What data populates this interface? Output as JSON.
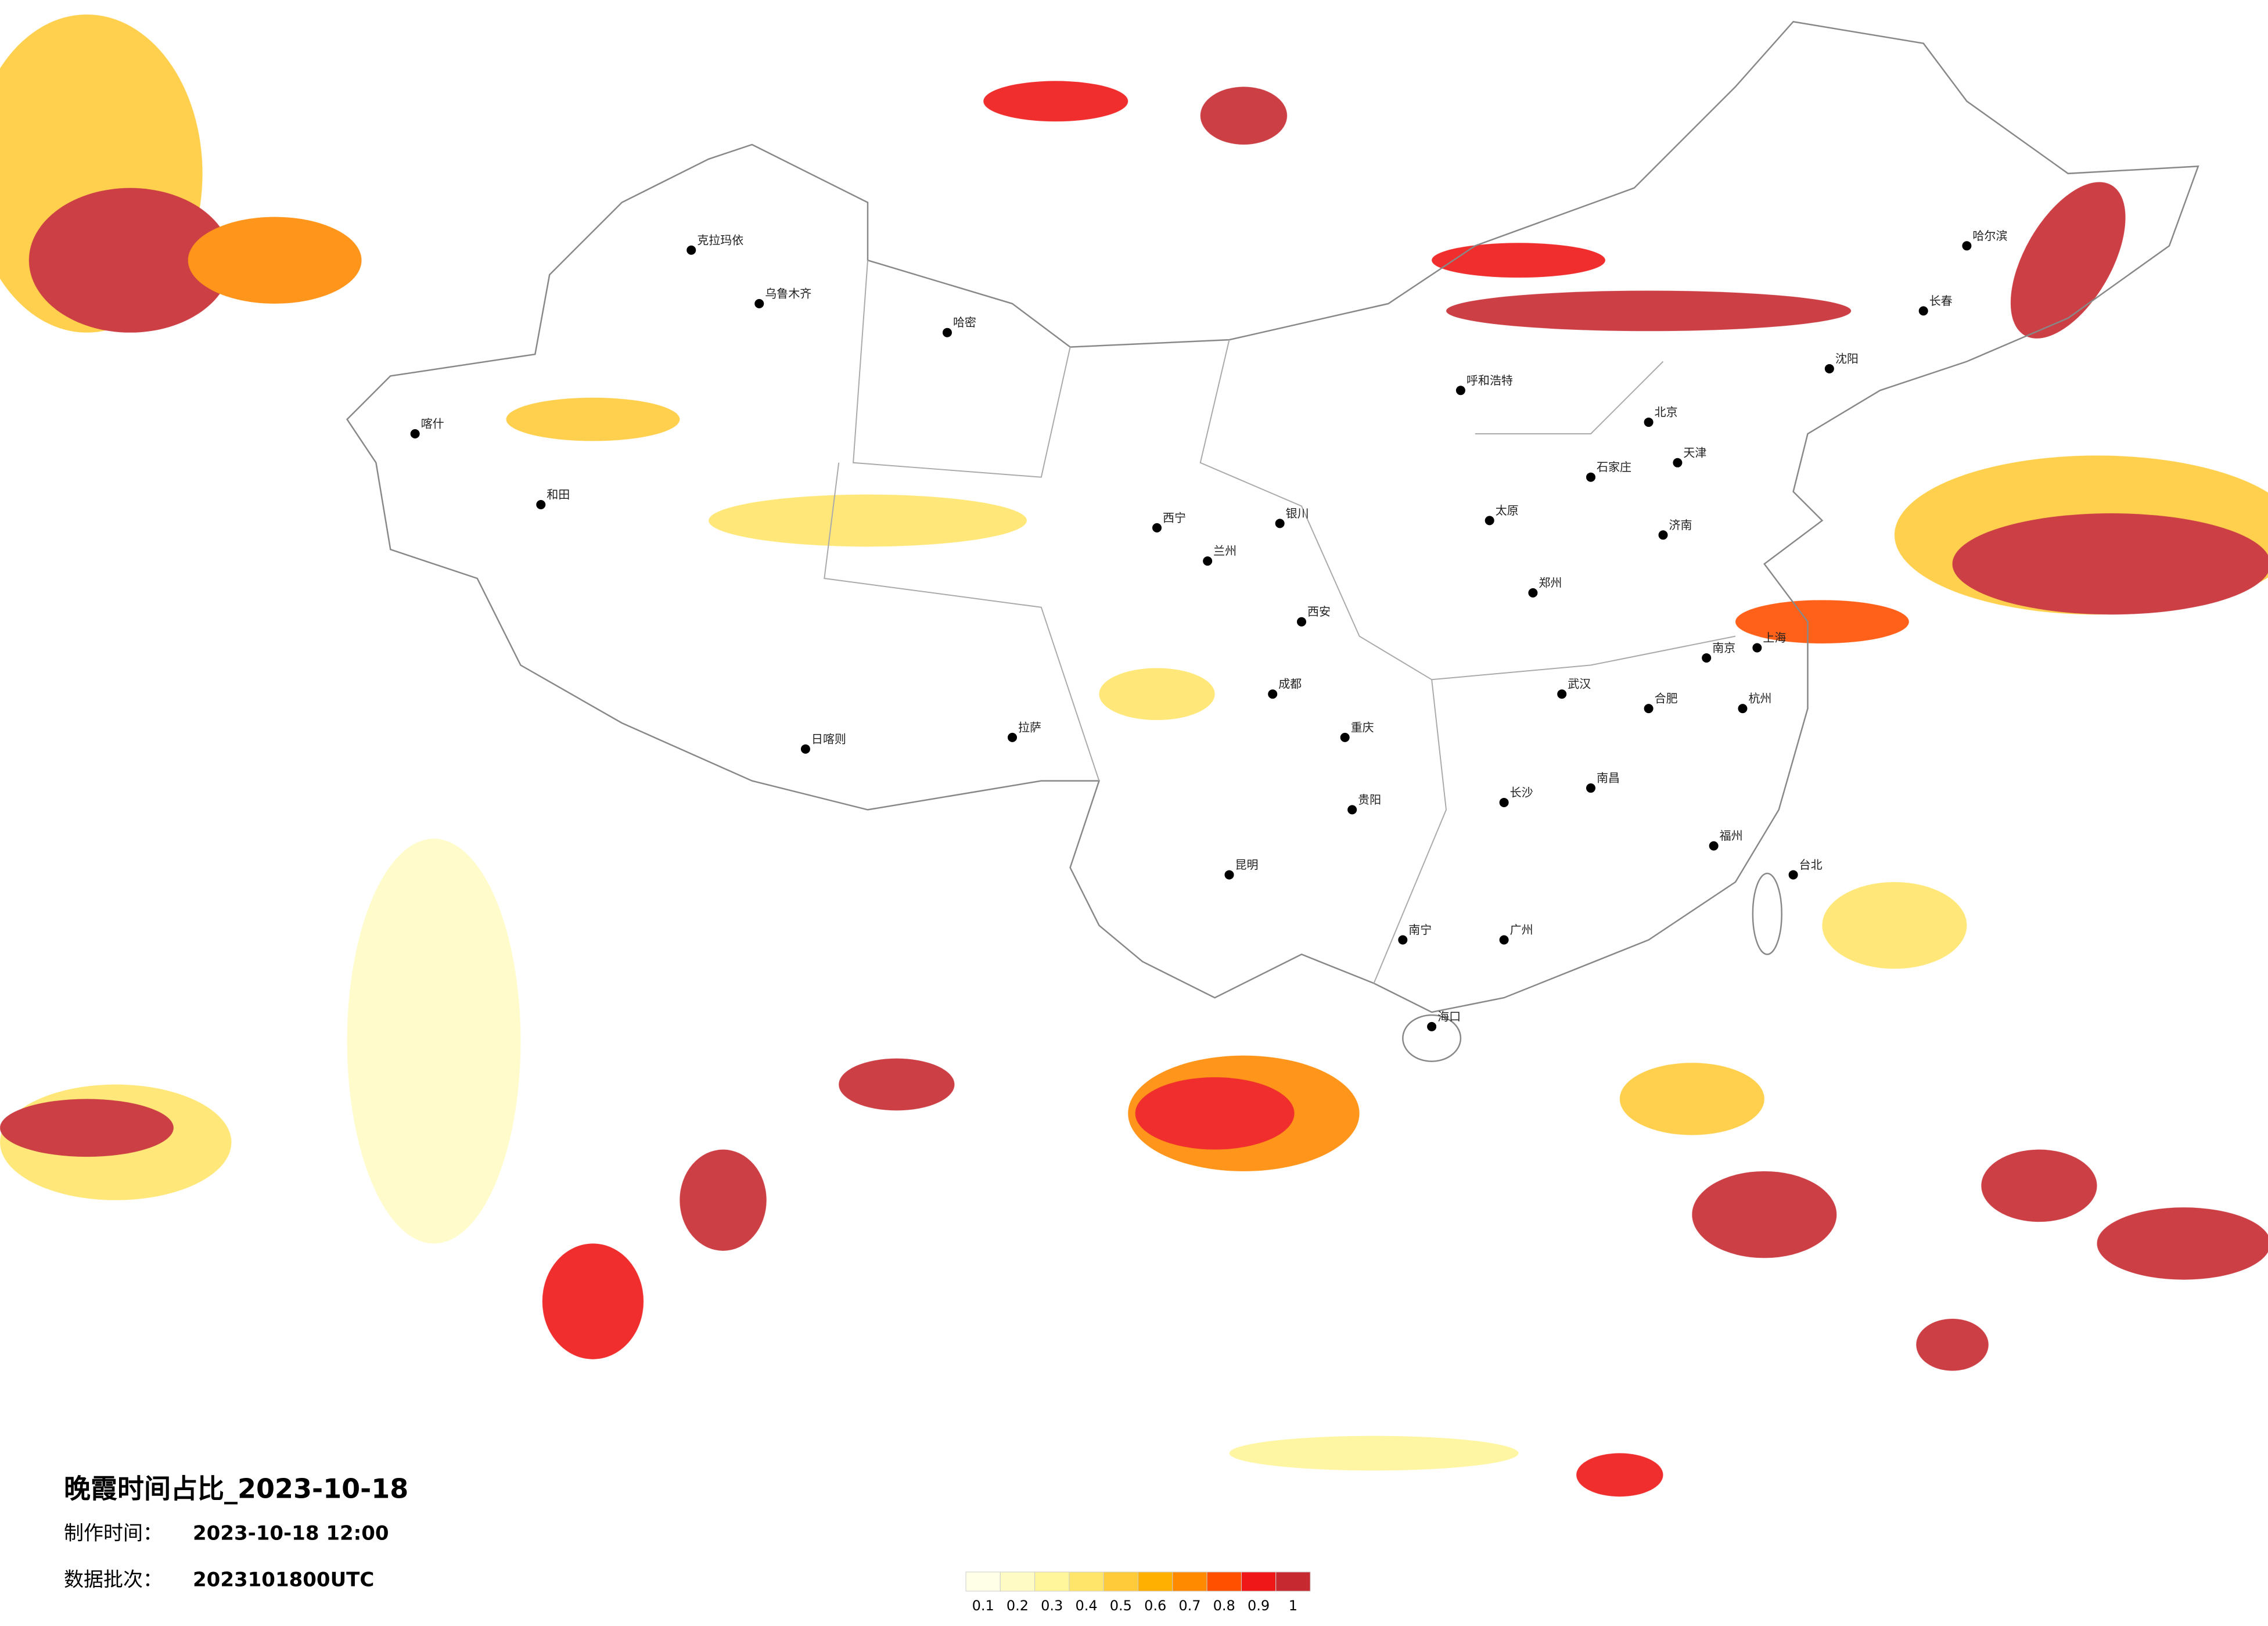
{
  "header": {
    "title": "晚霞时间占比_2023-10-18",
    "made_label": "制作时间：",
    "made_time": "2023-10-18 12:00",
    "batch_label": "数据批次：",
    "batch": "2023101800UTC"
  },
  "legend": {
    "ticks": [
      0.1,
      0.2,
      0.3,
      0.4,
      0.5,
      0.6,
      0.7,
      0.8,
      0.9,
      1
    ],
    "colors": [
      "#fffee6",
      "#fffbc4",
      "#fff59a",
      "#ffe66a",
      "#ffcb3a",
      "#ffb000",
      "#ff8a00",
      "#ff5000",
      "#ef1717",
      "#c62a30"
    ]
  },
  "cities": [
    "克拉玛依",
    "乌鲁木齐",
    "哈密",
    "喀什",
    "和田",
    "拉萨",
    "日喀则",
    "西宁",
    "兰州",
    "银川",
    "呼和浩特",
    "北京",
    "天津",
    "石家庄",
    "太原",
    "西安",
    "成都",
    "重庆",
    "昆明",
    "贵阳",
    "南宁",
    "广州",
    "长沙",
    "武汉",
    "郑州",
    "济南",
    "南京",
    "上海",
    "杭州",
    "福州",
    "南昌",
    "合肥",
    "沈阳",
    "长春",
    "哈尔滨",
    "海口",
    "台北"
  ]
}
